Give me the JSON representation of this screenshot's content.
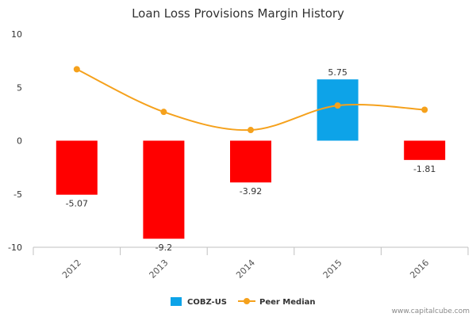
{
  "chart_data": {
    "type": "bar",
    "title": "Loan Loss Provisions Margin History",
    "categories": [
      "2012",
      "2013",
      "2014",
      "2015",
      "2016"
    ],
    "ylim": [
      -10,
      10
    ],
    "yticks": [
      10,
      5,
      0,
      -5,
      -10
    ],
    "grid": false,
    "legend_position": "bottom",
    "series": [
      {
        "name": "COBZ-US",
        "type": "bar",
        "values": [
          -5.07,
          -9.2,
          -3.92,
          5.75,
          -1.81
        ],
        "value_labels": [
          "-5.07",
          "-9.2",
          "-3.92",
          "5.75",
          "-1.81"
        ],
        "positive_color": "#0da3e8",
        "negative_color": "#ff0000",
        "legend_color": "#0da3e8"
      },
      {
        "name": "Peer Median",
        "type": "line",
        "values": [
          6.7,
          2.7,
          1.0,
          3.3,
          2.9
        ],
        "color": "#f5a11c"
      }
    ]
  },
  "footer": {
    "credit": "www.capitalcube.com"
  }
}
